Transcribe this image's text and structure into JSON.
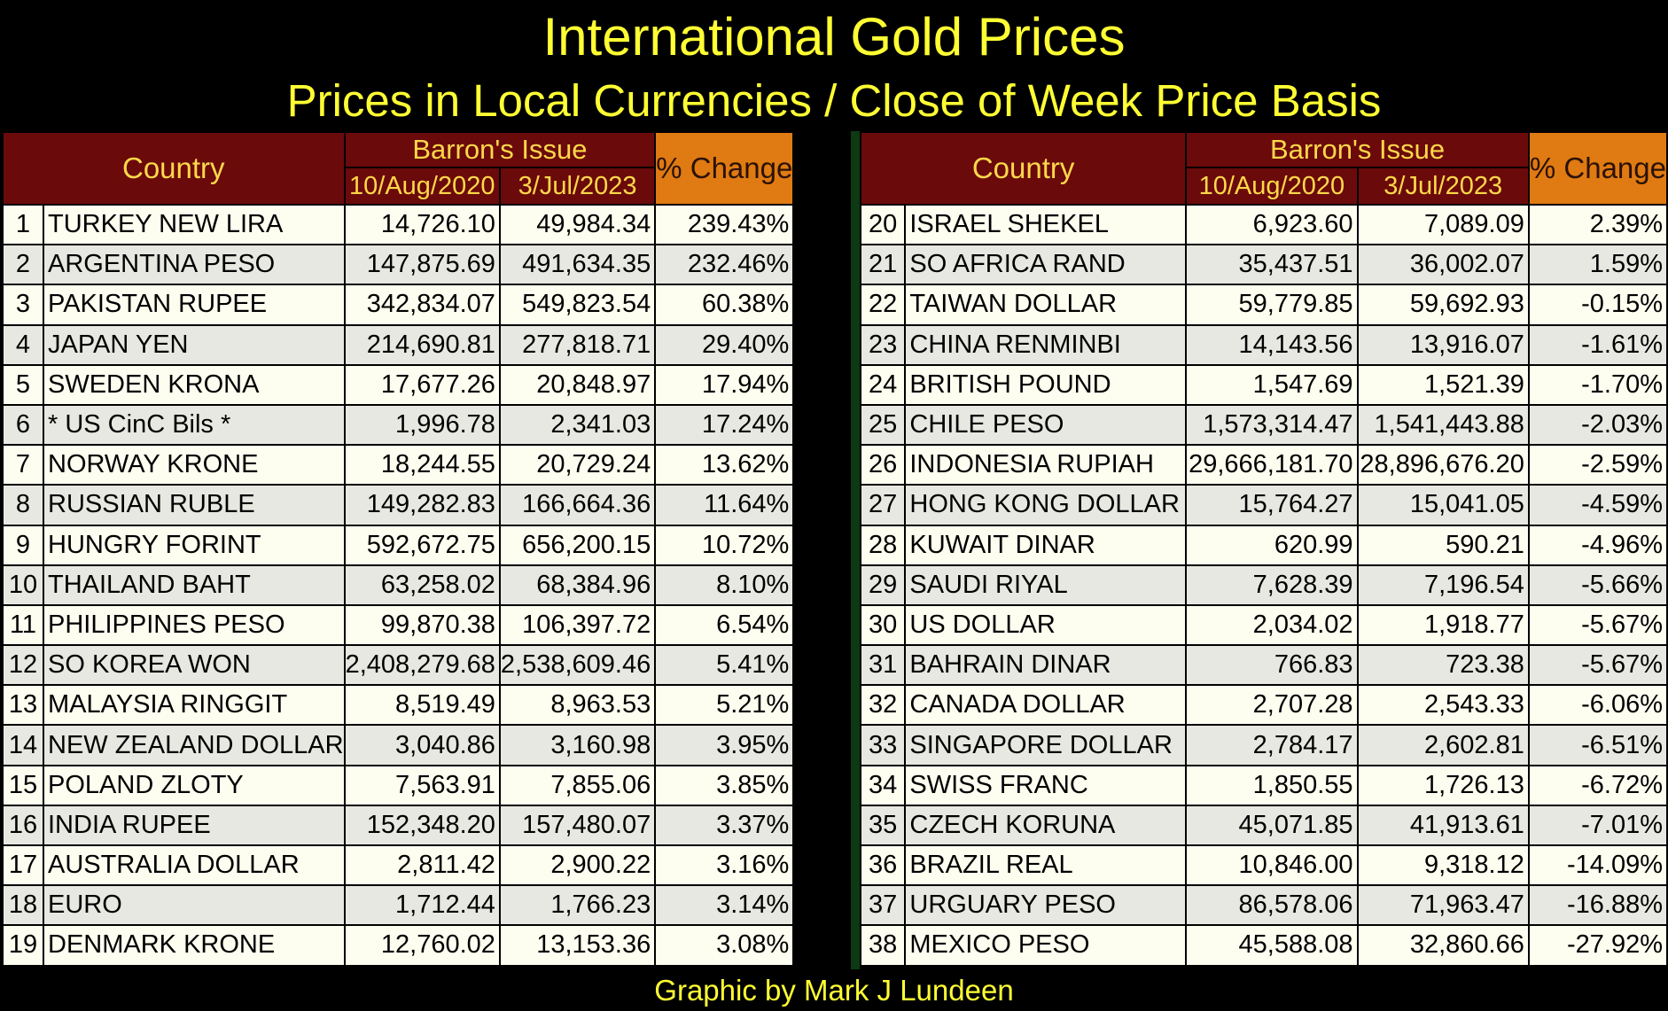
{
  "header": {
    "title": "International Gold Prices",
    "subtitle": "Prices in Local Currencies / Close of Week Price Basis"
  },
  "footer": "Graphic by Mark J Lundeen",
  "colors": {
    "background": "#000000",
    "title_text": "#ffff33",
    "header_fill": "#6b0a0a",
    "header_text": "#ffd84a",
    "pct_header_fill": "#e07a12",
    "row_light": "#fdfdf0",
    "row_dark": "#e8e8e2",
    "divider": "#0d3a12"
  },
  "chart_data": {
    "type": "table",
    "title": "International Gold Prices",
    "subtitle": "Prices in Local Currencies / Close of Week Price Basis",
    "columns": {
      "country": "Country",
      "group": "Barron's Issue",
      "date1": "10/Aug/2020",
      "date2": "3/Jul/2023",
      "pct": "% Change"
    },
    "left": [
      {
        "rank": "1",
        "country": "TURKEY NEW LIRA",
        "v1": "14,726.10",
        "v2": "49,984.34",
        "pct": "239.43%"
      },
      {
        "rank": "2",
        "country": "ARGENTINA PESO",
        "v1": "147,875.69",
        "v2": "491,634.35",
        "pct": "232.46%"
      },
      {
        "rank": "3",
        "country": "PAKISTAN RUPEE",
        "v1": "342,834.07",
        "v2": "549,823.54",
        "pct": "60.38%"
      },
      {
        "rank": "4",
        "country": "JAPAN YEN",
        "v1": "214,690.81",
        "v2": "277,818.71",
        "pct": "29.40%"
      },
      {
        "rank": "5",
        "country": "SWEDEN KRONA",
        "v1": "17,677.26",
        "v2": "20,848.97",
        "pct": "17.94%"
      },
      {
        "rank": "6",
        "country": "* US CinC Bils *",
        "v1": "1,996.78",
        "v2": "2,341.03",
        "pct": "17.24%"
      },
      {
        "rank": "7",
        "country": "NORWAY KRONE",
        "v1": "18,244.55",
        "v2": "20,729.24",
        "pct": "13.62%"
      },
      {
        "rank": "8",
        "country": "RUSSIAN RUBLE",
        "v1": "149,282.83",
        "v2": "166,664.36",
        "pct": "11.64%"
      },
      {
        "rank": "9",
        "country": "HUNGRY FORINT",
        "v1": "592,672.75",
        "v2": "656,200.15",
        "pct": "10.72%"
      },
      {
        "rank": "10",
        "country": "THAILAND BAHT",
        "v1": "63,258.02",
        "v2": "68,384.96",
        "pct": "8.10%"
      },
      {
        "rank": "11",
        "country": "PHILIPPINES PESO",
        "v1": "99,870.38",
        "v2": "106,397.72",
        "pct": "6.54%"
      },
      {
        "rank": "12",
        "country": "SO KOREA WON",
        "v1": "2,408,279.68",
        "v2": "2,538,609.46",
        "pct": "5.41%"
      },
      {
        "rank": "13",
        "country": "MALAYSIA RINGGIT",
        "v1": "8,519.49",
        "v2": "8,963.53",
        "pct": "5.21%"
      },
      {
        "rank": "14",
        "country": "NEW ZEALAND DOLLAR",
        "v1": "3,040.86",
        "v2": "3,160.98",
        "pct": "3.95%"
      },
      {
        "rank": "15",
        "country": "POLAND ZLOTY",
        "v1": "7,563.91",
        "v2": "7,855.06",
        "pct": "3.85%"
      },
      {
        "rank": "16",
        "country": "INDIA RUPEE",
        "v1": "152,348.20",
        "v2": "157,480.07",
        "pct": "3.37%"
      },
      {
        "rank": "17",
        "country": "AUSTRALIA DOLLAR",
        "v1": "2,811.42",
        "v2": "2,900.22",
        "pct": "3.16%"
      },
      {
        "rank": "18",
        "country": "EURO",
        "v1": "1,712.44",
        "v2": "1,766.23",
        "pct": "3.14%"
      },
      {
        "rank": "19",
        "country": "DENMARK KRONE",
        "v1": "12,760.02",
        "v2": "13,153.36",
        "pct": "3.08%"
      }
    ],
    "right": [
      {
        "rank": "20",
        "country": "ISRAEL SHEKEL",
        "v1": "6,923.60",
        "v2": "7,089.09",
        "pct": "2.39%"
      },
      {
        "rank": "21",
        "country": "SO AFRICA RAND",
        "v1": "35,437.51",
        "v2": "36,002.07",
        "pct": "1.59%"
      },
      {
        "rank": "22",
        "country": "TAIWAN DOLLAR",
        "v1": "59,779.85",
        "v2": "59,692.93",
        "pct": "-0.15%"
      },
      {
        "rank": "23",
        "country": "CHINA RENMINBI",
        "v1": "14,143.56",
        "v2": "13,916.07",
        "pct": "-1.61%"
      },
      {
        "rank": "24",
        "country": "BRITISH POUND",
        "v1": "1,547.69",
        "v2": "1,521.39",
        "pct": "-1.70%"
      },
      {
        "rank": "25",
        "country": "CHILE PESO",
        "v1": "1,573,314.47",
        "v2": "1,541,443.88",
        "pct": "-2.03%"
      },
      {
        "rank": "26",
        "country": "INDONESIA RUPIAH",
        "v1": "29,666,181.70",
        "v2": "28,896,676.20",
        "pct": "-2.59%"
      },
      {
        "rank": "27",
        "country": "HONG KONG DOLLAR",
        "v1": "15,764.27",
        "v2": "15,041.05",
        "pct": "-4.59%"
      },
      {
        "rank": "28",
        "country": "KUWAIT DINAR",
        "v1": "620.99",
        "v2": "590.21",
        "pct": "-4.96%"
      },
      {
        "rank": "29",
        "country": "SAUDI RIYAL",
        "v1": "7,628.39",
        "v2": "7,196.54",
        "pct": "-5.66%"
      },
      {
        "rank": "30",
        "country": "US DOLLAR",
        "v1": "2,034.02",
        "v2": "1,918.77",
        "pct": "-5.67%"
      },
      {
        "rank": "31",
        "country": "BAHRAIN DINAR",
        "v1": "766.83",
        "v2": "723.38",
        "pct": "-5.67%"
      },
      {
        "rank": "32",
        "country": "CANADA DOLLAR",
        "v1": "2,707.28",
        "v2": "2,543.33",
        "pct": "-6.06%"
      },
      {
        "rank": "33",
        "country": "SINGAPORE DOLLAR",
        "v1": "2,784.17",
        "v2": "2,602.81",
        "pct": "-6.51%"
      },
      {
        "rank": "34",
        "country": "SWISS FRANC",
        "v1": "1,850.55",
        "v2": "1,726.13",
        "pct": "-6.72%"
      },
      {
        "rank": "35",
        "country": "CZECH KORUNA",
        "v1": "45,071.85",
        "v2": "41,913.61",
        "pct": "-7.01%"
      },
      {
        "rank": "36",
        "country": "BRAZIL REAL",
        "v1": "10,846.00",
        "v2": "9,318.12",
        "pct": "-14.09%"
      },
      {
        "rank": "37",
        "country": "URGUARY PESO",
        "v1": "86,578.06",
        "v2": "71,963.47",
        "pct": "-16.88%"
      },
      {
        "rank": "38",
        "country": "MEXICO PESO",
        "v1": "45,588.08",
        "v2": "32,860.66",
        "pct": "-27.92%"
      }
    ]
  }
}
